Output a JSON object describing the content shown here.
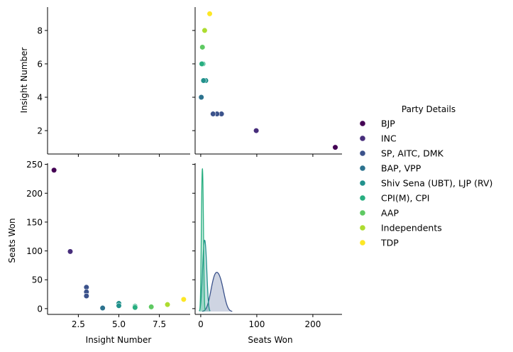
{
  "chart_data": {
    "type": "scatter",
    "kind": "pairplot",
    "variables": [
      "Insight Number",
      "Seats Won"
    ],
    "labels": {
      "insight_axis": "Insight Number",
      "seats_axis": "Seats Won"
    },
    "insight_range": [
      0.6,
      9.4
    ],
    "seats_range": [
      -10,
      252
    ],
    "insight_ticks_left": [
      "2",
      "4",
      "6",
      "8"
    ],
    "insight_ticks_bottom": [
      "2.5",
      "5.0",
      "7.5"
    ],
    "seats_ticks_left": [
      "0",
      "50",
      "100",
      "150",
      "200",
      "250"
    ],
    "seats_ticks_bottom": [
      "0",
      "100",
      "200"
    ],
    "legend": {
      "title": "Party Details",
      "placement": "right"
    },
    "series": [
      {
        "name": "BJP",
        "color": "#440154",
        "points": [
          {
            "insight": 1,
            "seats": 240
          }
        ]
      },
      {
        "name": "INC",
        "color": "#472d7b",
        "points": [
          {
            "insight": 2,
            "seats": 99
          }
        ]
      },
      {
        "name": "SP, AITC, DMK",
        "color": "#3b528b",
        "points": [
          {
            "insight": 3,
            "seats": 37
          },
          {
            "insight": 3,
            "seats": 29
          },
          {
            "insight": 3,
            "seats": 22
          }
        ]
      },
      {
        "name": "BAP, VPP",
        "color": "#2c728e",
        "points": [
          {
            "insight": 4,
            "seats": 1
          },
          {
            "insight": 4,
            "seats": 1
          }
        ]
      },
      {
        "name": "Shiv Sena (UBT), LJP (RV)",
        "color": "#21918c",
        "points": [
          {
            "insight": 5,
            "seats": 9
          },
          {
            "insight": 5,
            "seats": 5
          }
        ]
      },
      {
        "name": "CPI(M), CPI",
        "color": "#28ae80",
        "points": [
          {
            "insight": 6,
            "seats": 4
          },
          {
            "insight": 6,
            "seats": 2
          }
        ]
      },
      {
        "name": "AAP",
        "color": "#5ec962",
        "points": [
          {
            "insight": 7,
            "seats": 3
          }
        ]
      },
      {
        "name": "Independents",
        "color": "#addc30",
        "points": [
          {
            "insight": 8,
            "seats": 7
          }
        ]
      },
      {
        "name": "TDP",
        "color": "#fde725",
        "points": [
          {
            "insight": 9,
            "seats": 16
          }
        ]
      }
    ]
  }
}
